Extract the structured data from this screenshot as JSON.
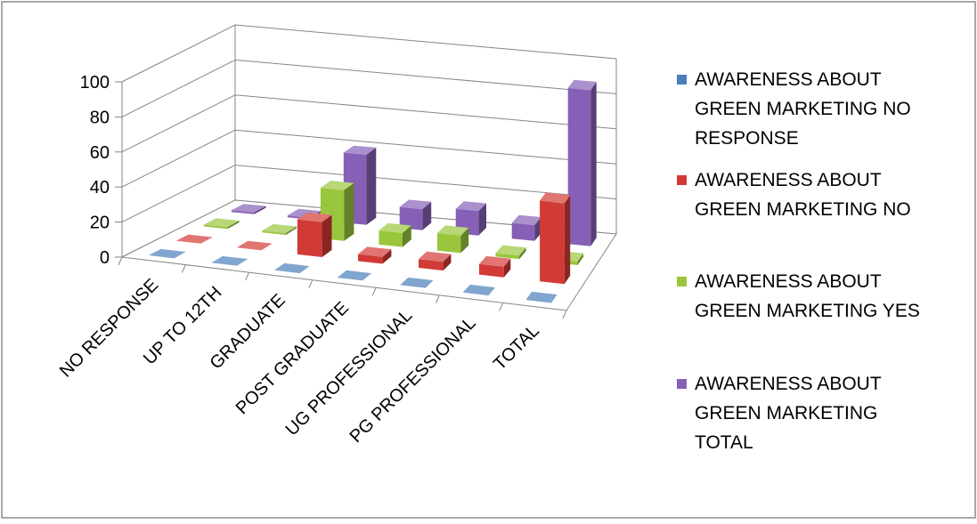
{
  "chart_data": {
    "type": "bar",
    "subtype": "3d-clustered-column",
    "title": "",
    "xlabel": "",
    "ylabel": "",
    "ylim": [
      0,
      100
    ],
    "y_ticks": [
      "0",
      "20",
      "40",
      "60",
      "80",
      "100"
    ],
    "grid": true,
    "legend_position": "right",
    "categories": [
      "NO RESPONSE",
      "UP TO 12TH",
      "GRADUATE",
      "POST GRADUATE",
      "UG PROFESSIONAL",
      "PG PROFESSIONAL",
      "TOTAL"
    ],
    "series": [
      {
        "name": "AWARENESS ABOUT GREEN MARKETING NO RESPONSE",
        "legend_lines": [
          "AWARENESS ABOUT",
          "GREEN MARKETING NO",
          "RESPONSE"
        ],
        "color": "#4a7ebb",
        "values": [
          0,
          0,
          0,
          0,
          0,
          0,
          0
        ]
      },
      {
        "name": "AWARENESS ABOUT GREEN MARKETING NO",
        "legend_lines": [
          "AWARENESS ABOUT",
          "GREEN MARKETING NO"
        ],
        "color": "#d23a36",
        "values": [
          0,
          0,
          20,
          4,
          5,
          6,
          46
        ]
      },
      {
        "name": "AWARENESS ABOUT GREEN MARKETING YES",
        "legend_lines": [
          "AWARENESS ABOUT",
          "GREEN MARKETING YES"
        ],
        "color": "#99c63c",
        "values": [
          1,
          1,
          29,
          8,
          10,
          2,
          2
        ]
      },
      {
        "name": "AWARENESS ABOUT GREEN MARKETING TOTAL",
        "legend_lines": [
          "AWARENESS ABOUT",
          "GREEN MARKETING",
          "TOTAL"
        ],
        "color": "#8660b6",
        "values": [
          1,
          1,
          40,
          12,
          14,
          9,
          89
        ]
      }
    ]
  }
}
